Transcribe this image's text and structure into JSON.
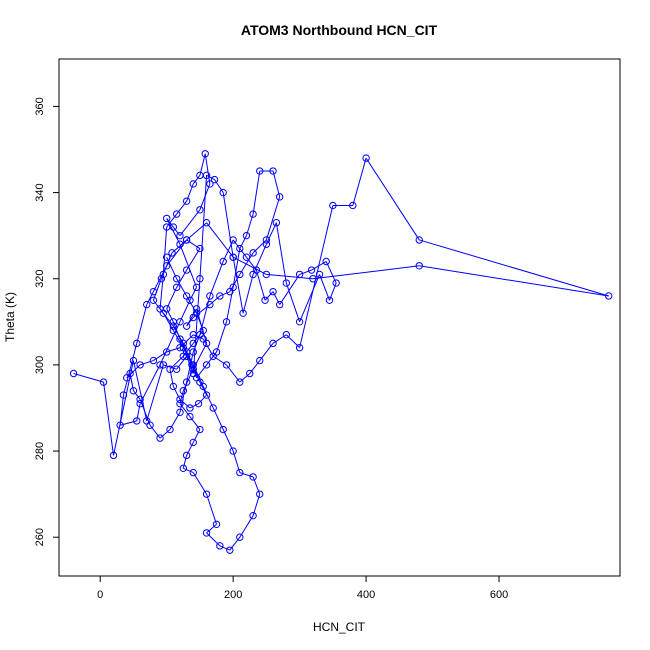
{
  "chart_data": {
    "type": "line",
    "title": "ATOM3 Northbound HCN_CIT",
    "xlabel": "HCN_CIT",
    "ylabel": "Theta (K)",
    "xlim": [
      -62,
      782
    ],
    "ylim": [
      251,
      371
    ],
    "xticks": [
      0,
      200,
      400,
      600
    ],
    "yticks": [
      260,
      280,
      300,
      320,
      340,
      360
    ],
    "grid": false,
    "legend": "none",
    "markers": "open-circle",
    "series_color": "#0000FF",
    "series": [
      {
        "x": [
          -40,
          5,
          20,
          50,
          70,
          95,
          115,
          130,
          140,
          150,
          160,
          172,
          185,
          200,
          215,
          230,
          250,
          265,
          280,
          300,
          330,
          345,
          355,
          340,
          318,
          300,
          270,
          260,
          248,
          235,
          220,
          200,
          185,
          165,
          150,
          140,
          130,
          120,
          105,
          90,
          75,
          60,
          50,
          45,
          40,
          60,
          80,
          100,
          120,
          140,
          155,
          170,
          190,
          210,
          225,
          240,
          260,
          280,
          300,
          350,
          380,
          400,
          480,
          765,
          480,
          320,
          250,
          200,
          160,
          130,
          100,
          80,
          70,
          55,
          35,
          30,
          55,
          60,
          90,
          120,
          135,
          145,
          120,
          100,
          110,
          120,
          150,
          165,
          158,
          150,
          140,
          130,
          115,
          100,
          95,
          90,
          110,
          125,
          145,
          160,
          175,
          190,
          200,
          210,
          220,
          230,
          240,
          260,
          270,
          250,
          230,
          210,
          195,
          180,
          165,
          140,
          130,
          145,
          160,
          140,
          125,
          120,
          135,
          150,
          140,
          130,
          125,
          140,
          160,
          175,
          160,
          180,
          195,
          210,
          230,
          240,
          230,
          210,
          200,
          185,
          170,
          155,
          140,
          130,
          120,
          110,
          100,
          115,
          130,
          150,
          130,
          108,
          92,
          80,
          95,
          110,
          125,
          138,
          150,
          160,
          148,
          135,
          120,
          110,
          105,
          125,
          140,
          155,
          145,
          130,
          115,
          100
        ],
        "y": [
          298,
          296,
          279,
          301,
          287,
          300,
          299,
          302,
          298,
          320,
          344,
          343,
          340,
          325,
          312,
          321,
          328,
          333,
          319,
          310,
          321,
          315,
          319,
          324,
          322,
          321,
          314,
          317,
          315,
          322,
          325,
          329,
          324,
          316,
          307,
          303,
          296,
          289,
          285,
          283,
          286,
          292,
          294,
          298,
          297,
          300,
          301,
          303,
          304,
          307,
          306,
          302,
          300,
          296,
          298,
          301,
          305,
          307,
          304,
          337,
          337,
          348,
          329,
          316,
          323,
          320,
          321,
          325,
          333,
          329,
          323,
          317,
          314,
          305,
          293,
          286,
          287,
          291,
          300,
          310,
          315,
          318,
          328,
          334,
          332,
          330,
          336,
          342,
          349,
          344,
          342,
          338,
          335,
          332,
          321,
          313,
          309,
          305,
          297,
          300,
          303,
          310,
          318,
          327,
          330,
          335,
          345,
          345,
          339,
          329,
          326,
          321,
          317,
          316,
          314,
          311,
          309,
          313,
          305,
          299,
          294,
          291,
          288,
          285,
          282,
          279,
          276,
          275,
          270,
          263,
          261,
          258,
          257,
          260,
          265,
          270,
          274,
          275,
          280,
          285,
          290,
          295,
          300,
          303,
          306,
          310,
          313,
          318,
          322,
          327,
          329,
          326,
          320,
          315,
          312,
          308,
          304,
          300,
          296,
          293,
          291,
          290,
          292,
          295,
          299,
          302,
          305,
          308,
          312,
          316,
          320,
          325
        ]
      }
    ]
  }
}
